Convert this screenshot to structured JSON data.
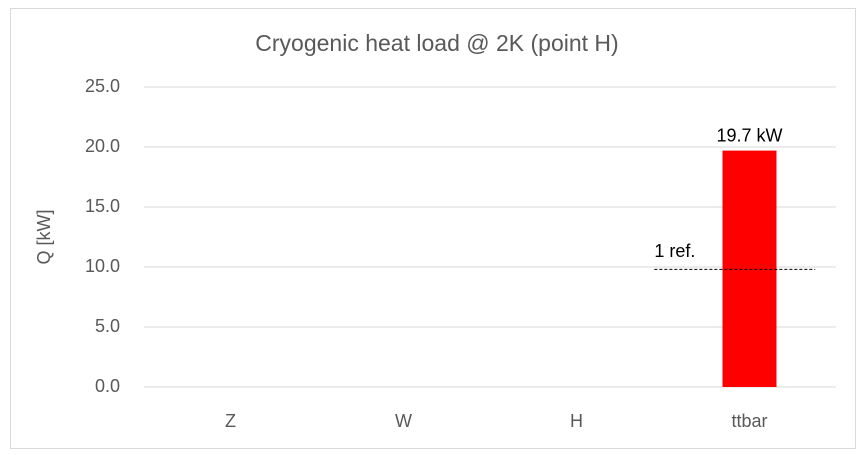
{
  "chart_data": {
    "type": "bar",
    "title": "Cryogenic heat load @ 2K (point H)",
    "y_label": "Q [kW]",
    "categories": [
      "Z",
      "W",
      "H",
      "ttbar"
    ],
    "values": [
      null,
      null,
      null,
      19.7
    ],
    "value_labels": [
      null,
      null,
      null,
      "19.7 kW"
    ],
    "color": "#ff0000",
    "reference": {
      "label": "1 ref.",
      "value": 9.8
    },
    "ylim": [
      0,
      25
    ],
    "yticks": [
      {
        "value": 0,
        "label": "0.0"
      },
      {
        "value": 5,
        "label": "5.0"
      },
      {
        "value": 10,
        "label": "10.0"
      },
      {
        "value": 15,
        "label": "15.0"
      },
      {
        "value": 20,
        "label": "20.0"
      },
      {
        "value": 25,
        "label": "25.0"
      }
    ],
    "grid": true
  }
}
